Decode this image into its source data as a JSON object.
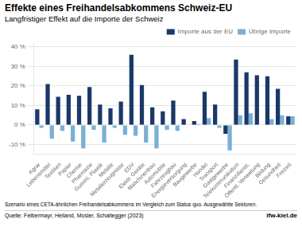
{
  "chart_data": {
    "type": "bar",
    "title": "Effekte eines Freihandelsabkommens Schweiz-EU",
    "subtitle": "Langfristiger Effekt auf die Importe der Schweiz",
    "categories": [
      "Agrar",
      "Lebensmittel",
      "Textilien",
      "Papier",
      "Chemie",
      "Pharmazie",
      "Gummi, Plastik",
      "Metalle",
      "Metallerzeugnisse",
      "EDV",
      "Elektr. Geräte",
      "Maschinenbau",
      "Automobile",
      "Fahrzeugbau",
      "Energieversorgung",
      "Baugewerbe",
      "Handel",
      "Transport",
      "Gastgewerbe",
      "Telekommunikation",
      "Finanzdienst.",
      "Öffentl. Verwaltung",
      "Bildung",
      "Gesundheit",
      "Freizeit"
    ],
    "series": [
      {
        "name": "Importe aus der EU",
        "color": "#1a3868",
        "values": [
          8.0,
          21.0,
          14.5,
          15.5,
          15.0,
          19.5,
          10.5,
          8.5,
          12.0,
          36.0,
          20.5,
          9.0,
          7.0,
          12.5,
          3.0,
          2.0,
          17.0,
          10.5,
          -4.5,
          33.5,
          27.0,
          25.5,
          25.0,
          18.5,
          4.5
        ]
      },
      {
        "name": "Übrige Importe",
        "color": "#7bafd4",
        "values": [
          -1.5,
          -7.0,
          -3.0,
          -8.5,
          -12.0,
          -2.5,
          -9.0,
          -1.5,
          -5.0,
          -5.5,
          -9.0,
          -12.0,
          -2.5,
          -3.0,
          0.0,
          0.5,
          3.5,
          -1.5,
          -13.0,
          5.0,
          6.0,
          0.0,
          3.0,
          5.0,
          4.5
        ]
      }
    ],
    "ylim": [
      -15,
      42
    ],
    "yticks": [
      {
        "value": -10,
        "label": "-10 %"
      },
      {
        "value": 0,
        "label": "0 %"
      },
      {
        "value": 10,
        "label": "10 %"
      },
      {
        "value": 20,
        "label": "20 %"
      },
      {
        "value": 30,
        "label": "30 %"
      },
      {
        "value": 40,
        "label": "40 %"
      }
    ],
    "grid": true,
    "legend": "upper right",
    "annotations": [
      "Szenario eines CETA-ähnlichen Freihandelsabkommens im Vergleich zum Status quo. Ausgewählte Sektoren.",
      "Quelle: Felbermayr, Heiland, Mosler, Schaltegger (2023)",
      "ifw-kiel.de"
    ]
  }
}
